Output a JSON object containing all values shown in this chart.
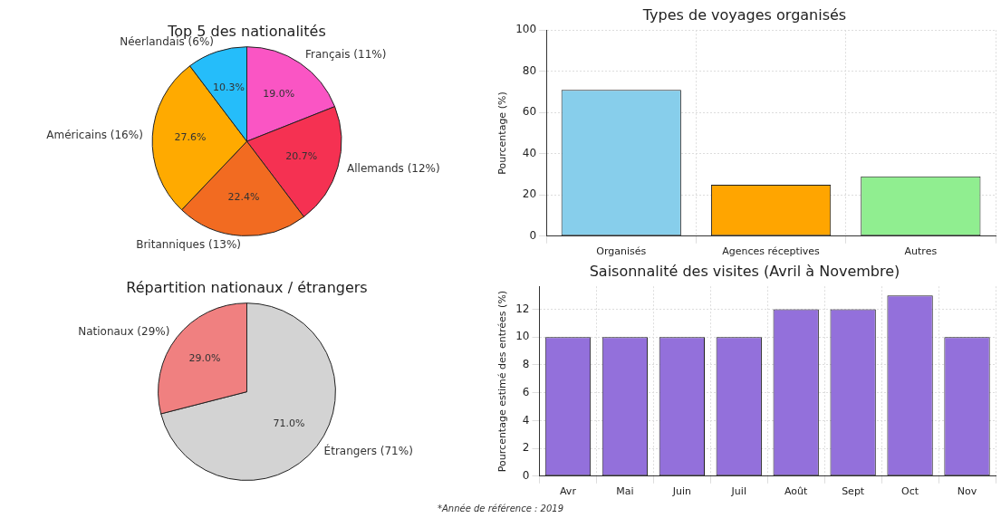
{
  "chart_data": [
    {
      "type": "pie",
      "title": "Top 5 des nationalités",
      "categories": [
        "Français (11%)",
        "Allemands (12%)",
        "Britanniques (13%)",
        "Américains (16%)",
        "Néerlandais (6%)"
      ],
      "values": [
        19.0,
        20.7,
        22.4,
        27.6,
        10.3
      ],
      "value_labels": [
        "19.0%",
        "20.7%",
        "22.4%",
        "27.6%",
        "10.3%"
      ],
      "colors": [
        "#fa55c4",
        "#f53152",
        "#f26b21",
        "#ffaa00",
        "#25bdfa"
      ]
    },
    {
      "type": "bar",
      "title": "Types de voyages organisés",
      "ylabel": "Pourcentage (%)",
      "categories": [
        "Organisés",
        "Agences réceptives",
        "Autres"
      ],
      "values": [
        71,
        25,
        29
      ],
      "colors": [
        "#87ceeb",
        "#ffa500",
        "#90ee90"
      ],
      "ylim": [
        0,
        100
      ],
      "yticks": [
        0,
        20,
        40,
        60,
        80,
        100
      ],
      "grid": true
    },
    {
      "type": "pie",
      "title": "Répartition nationaux / étrangers",
      "categories": [
        "Étrangers (71%)",
        "Nationaux (29%)"
      ],
      "values": [
        71.0,
        29.0
      ],
      "value_labels": [
        "71.0%",
        "29.0%"
      ],
      "colors": [
        "#d3d3d3",
        "#f08080"
      ],
      "annotations": [
        "*Année de référence : 2019"
      ]
    },
    {
      "type": "bar",
      "title": "Saisonnalité des visites (Avril à Novembre)",
      "ylabel": "Pourcentage estimé des entrées (%)",
      "categories": [
        "Avr",
        "Mai",
        "Juin",
        "Juil",
        "Août",
        "Sept",
        "Oct",
        "Nov"
      ],
      "values": [
        10,
        10,
        10,
        10,
        12,
        12,
        13,
        10
      ],
      "color": "#9370db",
      "ylim": [
        0,
        13.65
      ],
      "yticks": [
        0,
        2,
        4,
        6,
        8,
        10,
        12
      ],
      "grid": true
    }
  ]
}
